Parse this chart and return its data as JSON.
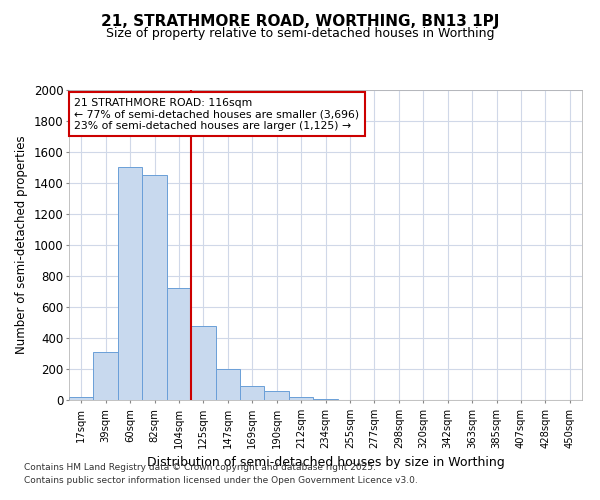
{
  "title": "21, STRATHMORE ROAD, WORTHING, BN13 1PJ",
  "subtitle": "Size of property relative to semi-detached houses in Worthing",
  "xlabel": "Distribution of semi-detached houses by size in Worthing",
  "ylabel": "Number of semi-detached properties",
  "categories": [
    "17sqm",
    "39sqm",
    "60sqm",
    "82sqm",
    "104sqm",
    "125sqm",
    "147sqm",
    "169sqm",
    "190sqm",
    "212sqm",
    "234sqm",
    "255sqm",
    "277sqm",
    "298sqm",
    "320sqm",
    "342sqm",
    "363sqm",
    "385sqm",
    "407sqm",
    "428sqm",
    "450sqm"
  ],
  "values": [
    20,
    310,
    1500,
    1450,
    720,
    475,
    200,
    90,
    55,
    20,
    5,
    2,
    2,
    0,
    0,
    0,
    0,
    0,
    0,
    0,
    0
  ],
  "bar_color": "#c8d9ee",
  "bar_edge_color": "#6a9fd8",
  "vline_x_index": 5,
  "vline_color": "#cc0000",
  "annotation_line1": "21 STRATHMORE ROAD: 116sqm",
  "annotation_line2": "← 77% of semi-detached houses are smaller (3,696)",
  "annotation_line3": "23% of semi-detached houses are larger (1,125) →",
  "annotation_box_edge_color": "#cc0000",
  "ylim": [
    0,
    2000
  ],
  "yticks": [
    0,
    200,
    400,
    600,
    800,
    1000,
    1200,
    1400,
    1600,
    1800,
    2000
  ],
  "footnote1": "Contains HM Land Registry data © Crown copyright and database right 2025.",
  "footnote2": "Contains public sector information licensed under the Open Government Licence v3.0.",
  "bg_color": "#ffffff",
  "plot_bg_color": "#ffffff",
  "grid_color": "#d0d8e8"
}
